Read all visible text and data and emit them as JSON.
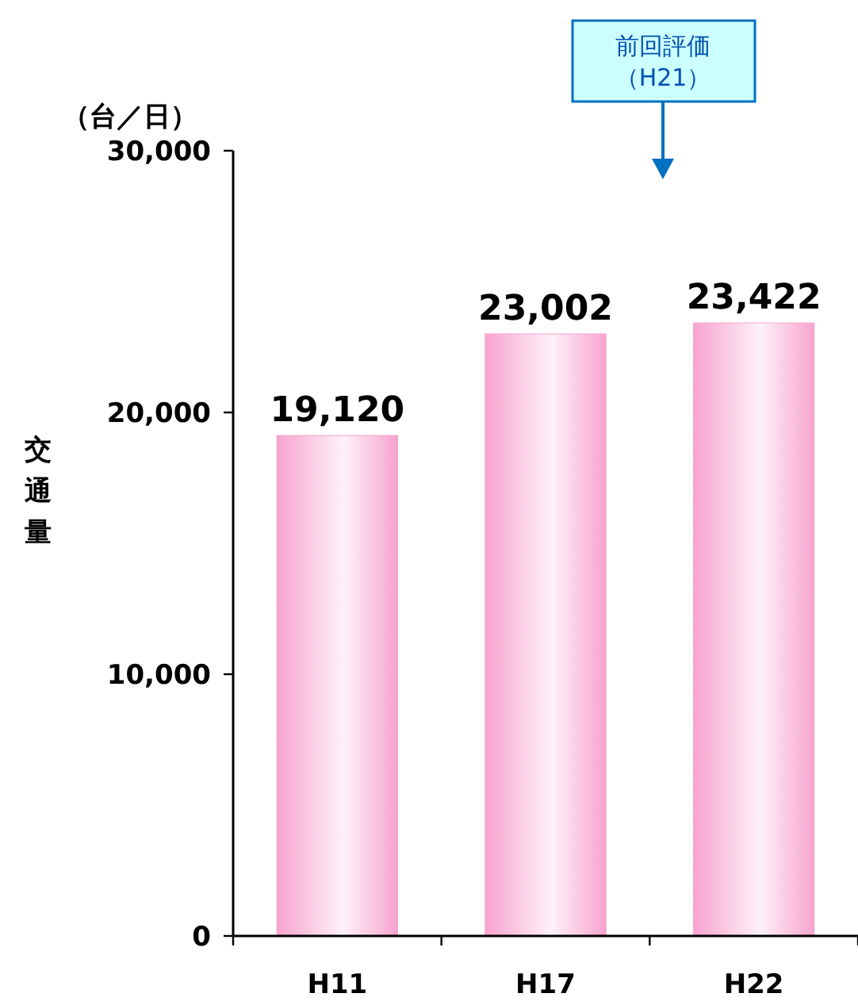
{
  "chart_data": {
    "type": "bar",
    "categories": [
      "H11",
      "H17",
      "H22"
    ],
    "series": [
      {
        "color": "#f7a3cf",
        "values": [
          19120,
          23002,
          23422
        ],
        "value_labels": [
          "19,120",
          "23,002",
          "23,422"
        ]
      }
    ],
    "ylabel": "交通量",
    "annotations": [
      "（台／日）",
      "前回評価",
      "（H21）"
    ],
    "ylim": [
      0,
      30000
    ],
    "yticks": [
      0,
      {
        "value": 10000,
        "label": "10,000"
      },
      {
        "value": 20000,
        "label": "20,000"
      },
      {
        "value": 30000,
        "label": "30,000"
      }
    ],
    "grid": false
  }
}
